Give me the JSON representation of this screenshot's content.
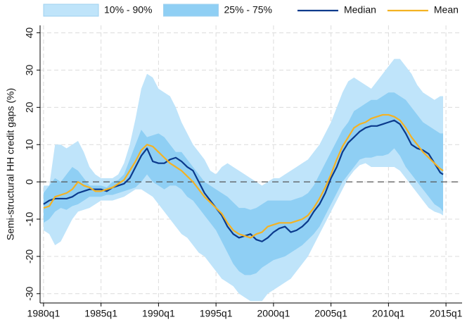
{
  "chart_data": {
    "type": "fan",
    "y_label": "Semi-structural HH credit gaps (%)",
    "x": [
      1980,
      1980.5,
      1981,
      1981.5,
      1982,
      1982.5,
      1983,
      1983.5,
      1984,
      1984.5,
      1985,
      1985.5,
      1986,
      1986.5,
      1987,
      1987.5,
      1988,
      1988.5,
      1989,
      1989.5,
      1990,
      1990.5,
      1991,
      1991.5,
      1992,
      1992.5,
      1993,
      1993.5,
      1994,
      1994.5,
      1995,
      1995.5,
      1996,
      1996.5,
      1997,
      1997.5,
      1998,
      1998.5,
      1999,
      1999.5,
      2000,
      2000.5,
      2001,
      2001.5,
      2002,
      2002.5,
      2003,
      2003.5,
      2004,
      2004.5,
      2005,
      2005.5,
      2006,
      2006.5,
      2007,
      2007.5,
      2008,
      2008.5,
      2009,
      2009.5,
      2010,
      2010.5,
      2011,
      2011.5,
      2012,
      2012.5,
      2013,
      2013.5,
      2014,
      2014.5,
      2014.75
    ],
    "bands": [
      {
        "name": "10% - 90%",
        "color": "#bfe4fa",
        "upper": [
          -1,
          -1,
          10,
          10,
          9,
          10,
          11,
          8,
          4,
          2,
          1,
          1,
          1,
          2,
          5,
          10,
          17,
          25,
          29,
          28,
          25,
          24,
          23,
          20,
          16,
          13,
          10,
          8,
          6,
          3,
          2,
          4,
          5,
          4,
          3,
          2,
          1,
          0,
          -1,
          0,
          1,
          1,
          2,
          3,
          4,
          5,
          6,
          8,
          10,
          13,
          16,
          20,
          24,
          27,
          28,
          27,
          26,
          25,
          27,
          29,
          31,
          33,
          33,
          31,
          29,
          26,
          24,
          23,
          22,
          23,
          23
        ],
        "lower": [
          -13,
          -14,
          -17,
          -16,
          -13,
          -10,
          -8,
          -7.5,
          -7,
          -6,
          -5,
          -5,
          -5,
          -4.5,
          -4,
          -3,
          -2,
          -2,
          -3,
          -4,
          -6,
          -8,
          -10,
          -12,
          -14,
          -15,
          -17,
          -19,
          -20,
          -22,
          -24,
          -26,
          -27,
          -28,
          -30,
          -31,
          -32,
          -32,
          -32,
          -30,
          -29,
          -28,
          -27,
          -26,
          -24,
          -22,
          -20,
          -17,
          -14,
          -11,
          -8,
          -5,
          -2,
          1,
          3,
          4.5,
          5,
          4,
          4,
          4,
          4,
          4,
          3,
          1,
          -1,
          -3,
          -5,
          -7,
          -8,
          -8.5,
          -9
        ]
      },
      {
        "name": "25% - 75%",
        "color": "#8fcff4",
        "upper": [
          -3,
          -1,
          1,
          0,
          2,
          4,
          3,
          1,
          -1,
          -1,
          -1,
          -1.5,
          0,
          0.5,
          2,
          6,
          10,
          14,
          12,
          12.5,
          13,
          12,
          10,
          8,
          8,
          6,
          4,
          2,
          0,
          -1,
          -2,
          -3,
          -4,
          -5.5,
          -7,
          -7,
          -7.5,
          -7,
          -6,
          -5,
          -5,
          -5,
          -5,
          -5,
          -4.5,
          -4,
          -3,
          -1,
          2,
          5,
          8,
          11,
          14,
          16,
          19,
          20,
          21,
          22,
          22,
          23,
          24,
          24,
          23,
          22,
          20,
          18,
          16,
          15,
          14,
          13,
          13
        ],
        "lower": [
          -11,
          -10,
          -8,
          -7,
          -7.5,
          -6.5,
          -6,
          -5,
          -4,
          -4,
          -4,
          -3.5,
          -3.5,
          -3,
          -2.5,
          -2,
          -1.5,
          0,
          2,
          0,
          -1,
          -2,
          -1,
          -1,
          -2,
          -4,
          -5,
          -7,
          -9,
          -11,
          -13,
          -16,
          -19,
          -22,
          -24,
          -25,
          -25,
          -24.5,
          -23,
          -22,
          -21,
          -20.5,
          -20,
          -19,
          -18,
          -17,
          -15.5,
          -14,
          -12,
          -9,
          -6,
          -3,
          0,
          2,
          4,
          6,
          6.5,
          6.5,
          7,
          7,
          7.5,
          9,
          7,
          4,
          2,
          0,
          -2,
          -4,
          -6,
          -7,
          -8
        ]
      }
    ],
    "series": [
      {
        "name": "Median",
        "color": "#0b3a8c",
        "values": [
          -6,
          -5,
          -4.5,
          -4.5,
          -4.5,
          -4,
          -3,
          -2.5,
          -2,
          -2,
          -2,
          -2.5,
          -1.5,
          -1,
          -0.5,
          1,
          4,
          7,
          9,
          5.5,
          5,
          5,
          6,
          6.5,
          5.5,
          4,
          3,
          0,
          -3,
          -5,
          -7,
          -9,
          -12,
          -14,
          -15,
          -14.5,
          -14,
          -15.5,
          -16,
          -15,
          -13.5,
          -12.5,
          -12,
          -13.5,
          -13,
          -12,
          -10.5,
          -8,
          -6,
          -3,
          1,
          4,
          8,
          10.5,
          12,
          13.5,
          14.5,
          15,
          15,
          15.5,
          16,
          16.5,
          15.5,
          13,
          10,
          9,
          8.5,
          7.5,
          5,
          2.5,
          2
        ]
      },
      {
        "name": "Mean",
        "color": "#f4b223",
        "values": [
          -7,
          -6.5,
          -4,
          -3.5,
          -3,
          -2,
          0,
          -1,
          -1.5,
          -2.5,
          -2.5,
          -2,
          -1.5,
          -0.5,
          0.5,
          3,
          5.5,
          8.5,
          10,
          9.5,
          8,
          6.5,
          5,
          4,
          3,
          1.5,
          0,
          -2,
          -4,
          -5.5,
          -7,
          -8.5,
          -11,
          -13,
          -14,
          -14.5,
          -15,
          -14,
          -13.5,
          -12,
          -11.5,
          -11,
          -11,
          -11,
          -10.5,
          -10,
          -9,
          -7,
          -4.5,
          -1.5,
          2,
          6,
          9.5,
          12,
          14.5,
          15.5,
          16,
          17,
          17.5,
          18,
          18,
          17.5,
          16.5,
          14.5,
          12,
          10,
          8,
          6.5,
          5,
          3.5,
          3
        ]
      }
    ],
    "reference_line": 0,
    "xlim": [
      1979.7,
      2016.4
    ],
    "ylim": [
      -32.5,
      42
    ],
    "xticks": [
      {
        "value": 1980,
        "label": "1980q1"
      },
      {
        "value": 1985,
        "label": "1985q1"
      },
      {
        "value": 1990,
        "label": "1990q1"
      },
      {
        "value": 1995,
        "label": "1995q1"
      },
      {
        "value": 2000,
        "label": "2000q1"
      },
      {
        "value": 2005,
        "label": "2005q1"
      },
      {
        "value": 2010,
        "label": "2010q1"
      },
      {
        "value": 2015,
        "label": "2015q1"
      }
    ],
    "yticks": [
      -30,
      -20,
      -10,
      0,
      10,
      20,
      30,
      40
    ],
    "grid": true,
    "legend": "top"
  }
}
